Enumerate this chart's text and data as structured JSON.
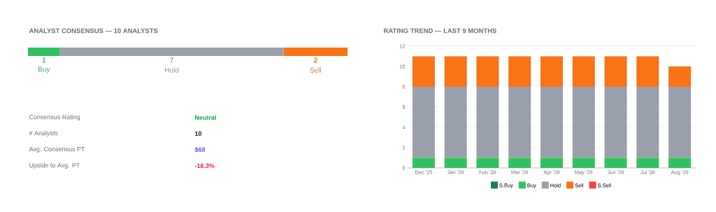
{
  "chart_data": [
    {
      "type": "bar",
      "title": "ANALYST CONSENSUS — 10 ANALYSTS",
      "orientation": "horizontal",
      "stacked": true,
      "categories": [
        null
      ],
      "data_labels": true,
      "series": [
        {
          "name": "Buy",
          "color": "#34c060",
          "values": [
            1
          ]
        },
        {
          "name": "Hold",
          "color": "#9aa0ab",
          "values": [
            7
          ]
        },
        {
          "name": "Sell",
          "color": "#f97316",
          "values": [
            2
          ]
        }
      ],
      "annotations": [
        "Consensus Rating",
        "Neutral",
        "# Analysts",
        "10",
        "Avg. Consensus PT",
        "$68",
        "Upside to Avg. PT",
        "-16.3%"
      ]
    },
    {
      "type": "bar",
      "title": "RATING TREND — LAST 9 MONTHS",
      "stacked": true,
      "categories": [
        "Dec '25",
        "Jan '26",
        "Feb '26",
        "Mar '26",
        "Apr '26",
        "May '26",
        "Jun '26",
        "Jul '26",
        "Aug '26"
      ],
      "ylim": [
        0,
        12
      ],
      "yticks": [
        0,
        2,
        4,
        6,
        8,
        10,
        12
      ],
      "grid": "y",
      "legend": "bottom",
      "series": [
        {
          "name": "S.Buy",
          "color": "#1e7b4f",
          "values": [
            0,
            0,
            0,
            0,
            0,
            0,
            0,
            0,
            0
          ]
        },
        {
          "name": "Buy",
          "color": "#34c060",
          "values": [
            1,
            1,
            1,
            1,
            1,
            1,
            1,
            1,
            1
          ]
        },
        {
          "name": "Hold",
          "color": "#9aa0ab",
          "values": [
            7,
            7,
            7,
            7,
            7,
            7,
            7,
            7,
            7
          ]
        },
        {
          "name": "Sell",
          "color": "#f97316",
          "values": [
            3,
            3,
            3,
            3,
            3,
            3,
            3,
            3,
            2
          ]
        },
        {
          "name": "S.Sell",
          "color": "#ef4444",
          "values": [
            0,
            0,
            0,
            0,
            0,
            0,
            0,
            0,
            0
          ]
        }
      ]
    }
  ]
}
